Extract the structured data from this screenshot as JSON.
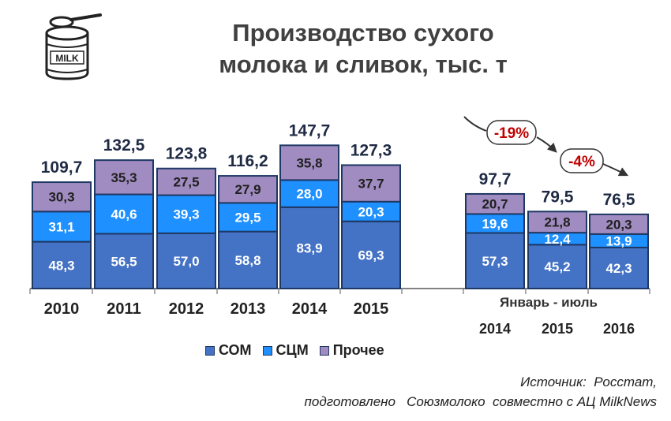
{
  "title_line1": "Производство сухого",
  "title_line2": "молока и сливок, тыс. т",
  "period_label": "Январь - июль",
  "source_line1": "Источник:  Росстат,",
  "source_line2": "подготовлено   Союзмолоко  совместно с АЦ MilkNews",
  "icon_text": "MILK",
  "colors": {
    "COM": "#4472c4",
    "SCM": "#1e90ff",
    "other": "#a08cc0",
    "outline": "#1f3864",
    "change": "#c00000"
  },
  "chart_data": {
    "type": "bar",
    "stacked": true,
    "categories": [
      "2010",
      "2011",
      "2012",
      "2013",
      "2014",
      "2015",
      "2014",
      "2015",
      "2016"
    ],
    "series": [
      {
        "name": "СОМ",
        "values": [
          48.3,
          56.5,
          57.0,
          58.8,
          83.9,
          69.3,
          57.3,
          45.2,
          42.3
        ],
        "labels": [
          "48,3",
          "56,5",
          "57,0",
          "58,8",
          "83,9",
          "69,3",
          "57,3",
          "45,2",
          "42,3"
        ]
      },
      {
        "name": "СЦМ",
        "values": [
          31.1,
          40.6,
          39.3,
          29.5,
          28.0,
          20.3,
          19.6,
          12.4,
          13.9
        ],
        "labels": [
          "31,1",
          "40,6",
          "39,3",
          "29,5",
          "28,0",
          "20,3",
          "19,6",
          "12,4",
          "13,9"
        ]
      },
      {
        "name": "Прочее",
        "values": [
          30.3,
          35.3,
          27.5,
          27.9,
          35.8,
          37.7,
          20.7,
          21.8,
          20.3
        ],
        "labels": [
          "30,3",
          "35,3",
          "27,5",
          "27,9",
          "35,8",
          "37,7",
          "20,7",
          "21,8",
          "20,3"
        ]
      }
    ],
    "totals": [
      109.7,
      132.5,
      123.8,
      116.2,
      147.7,
      127.3,
      97.7,
      79.5,
      76.5
    ],
    "total_labels": [
      "109,7",
      "132,5",
      "123,8",
      "116,2",
      "147,7",
      "127,3",
      "97,7",
      "79,5",
      "76,5"
    ],
    "changes": [
      "-19%",
      "-4%"
    ],
    "legend": [
      "СОМ",
      "СЦМ",
      "Прочее"
    ],
    "legend_position": "bottom",
    "grid": false
  }
}
